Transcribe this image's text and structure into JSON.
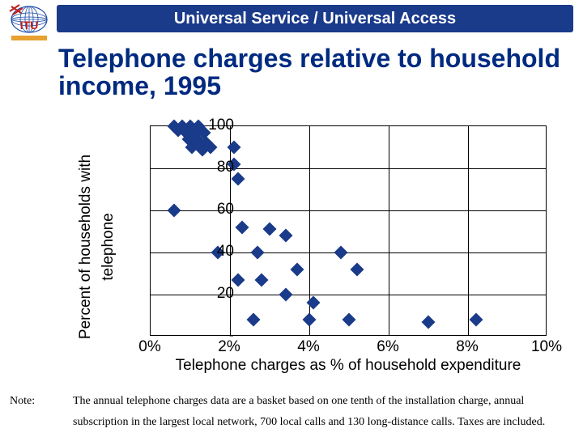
{
  "header": {
    "title": "Universal Service / Universal Access",
    "logo_label": "ITU"
  },
  "main_title": {
    "text": "Telephone charges relative to household income, 1995",
    "color": "#002a80",
    "fontsize": 32
  },
  "chart": {
    "type": "scatter",
    "y_label_outer": "Percent of households with",
    "y_label_inner": "telephone",
    "x_label": "Telephone charges as % of household expenditure",
    "xlim": [
      0,
      10
    ],
    "ylim": [
      0,
      100
    ],
    "x_ticks": [
      0,
      2,
      4,
      6,
      8,
      10
    ],
    "x_tick_labels": [
      "0%",
      "2%",
      "4%",
      "6%",
      "8%",
      "10%"
    ],
    "y_ticks": [
      0,
      20,
      40,
      60,
      80,
      100
    ],
    "y_tick_labels": [
      "-",
      "20",
      "40",
      "60",
      "80",
      "100"
    ],
    "label_fontsize": 19,
    "tick_fontsize": 19,
    "marker_color": "#1a3a8a",
    "marker_size": 12,
    "grid_color": "#000000",
    "background_color": "#ffffff",
    "points": [
      {
        "x": 0.6,
        "y": 100
      },
      {
        "x": 0.8,
        "y": 100
      },
      {
        "x": 1.0,
        "y": 100
      },
      {
        "x": 1.2,
        "y": 100
      },
      {
        "x": 0.7,
        "y": 98
      },
      {
        "x": 0.9,
        "y": 97
      },
      {
        "x": 1.1,
        "y": 96
      },
      {
        "x": 1.35,
        "y": 97
      },
      {
        "x": 0.95,
        "y": 94
      },
      {
        "x": 1.2,
        "y": 93
      },
      {
        "x": 1.4,
        "y": 92
      },
      {
        "x": 1.05,
        "y": 90
      },
      {
        "x": 1.3,
        "y": 89
      },
      {
        "x": 1.5,
        "y": 90
      },
      {
        "x": 2.1,
        "y": 90
      },
      {
        "x": 2.1,
        "y": 82
      },
      {
        "x": 2.2,
        "y": 75
      },
      {
        "x": 0.6,
        "y": 60
      },
      {
        "x": 2.3,
        "y": 52
      },
      {
        "x": 3.0,
        "y": 51
      },
      {
        "x": 3.4,
        "y": 48
      },
      {
        "x": 1.7,
        "y": 40
      },
      {
        "x": 2.7,
        "y": 40
      },
      {
        "x": 4.8,
        "y": 40
      },
      {
        "x": 3.7,
        "y": 32
      },
      {
        "x": 5.2,
        "y": 32
      },
      {
        "x": 2.2,
        "y": 27
      },
      {
        "x": 2.8,
        "y": 27
      },
      {
        "x": 3.4,
        "y": 20
      },
      {
        "x": 4.1,
        "y": 16
      },
      {
        "x": 2.6,
        "y": 8
      },
      {
        "x": 4.0,
        "y": 8
      },
      {
        "x": 5.0,
        "y": 8
      },
      {
        "x": 7.0,
        "y": 7
      },
      {
        "x": 8.2,
        "y": 8
      }
    ]
  },
  "note": {
    "label": "Note:",
    "line1": "The annual telephone charges data are a basket based on one tenth of the installation charge, annual",
    "line2": "subscription in the largest local network, 700 local calls and 130 long-distance calls. Taxes are included."
  },
  "colors": {
    "header_bg": "#1a3a8a",
    "header_text": "#ffffff",
    "title_text": "#002a80",
    "logo_globe": "#1a4aa8",
    "logo_text": "#c02020",
    "logo_ground": "#e8a030"
  }
}
